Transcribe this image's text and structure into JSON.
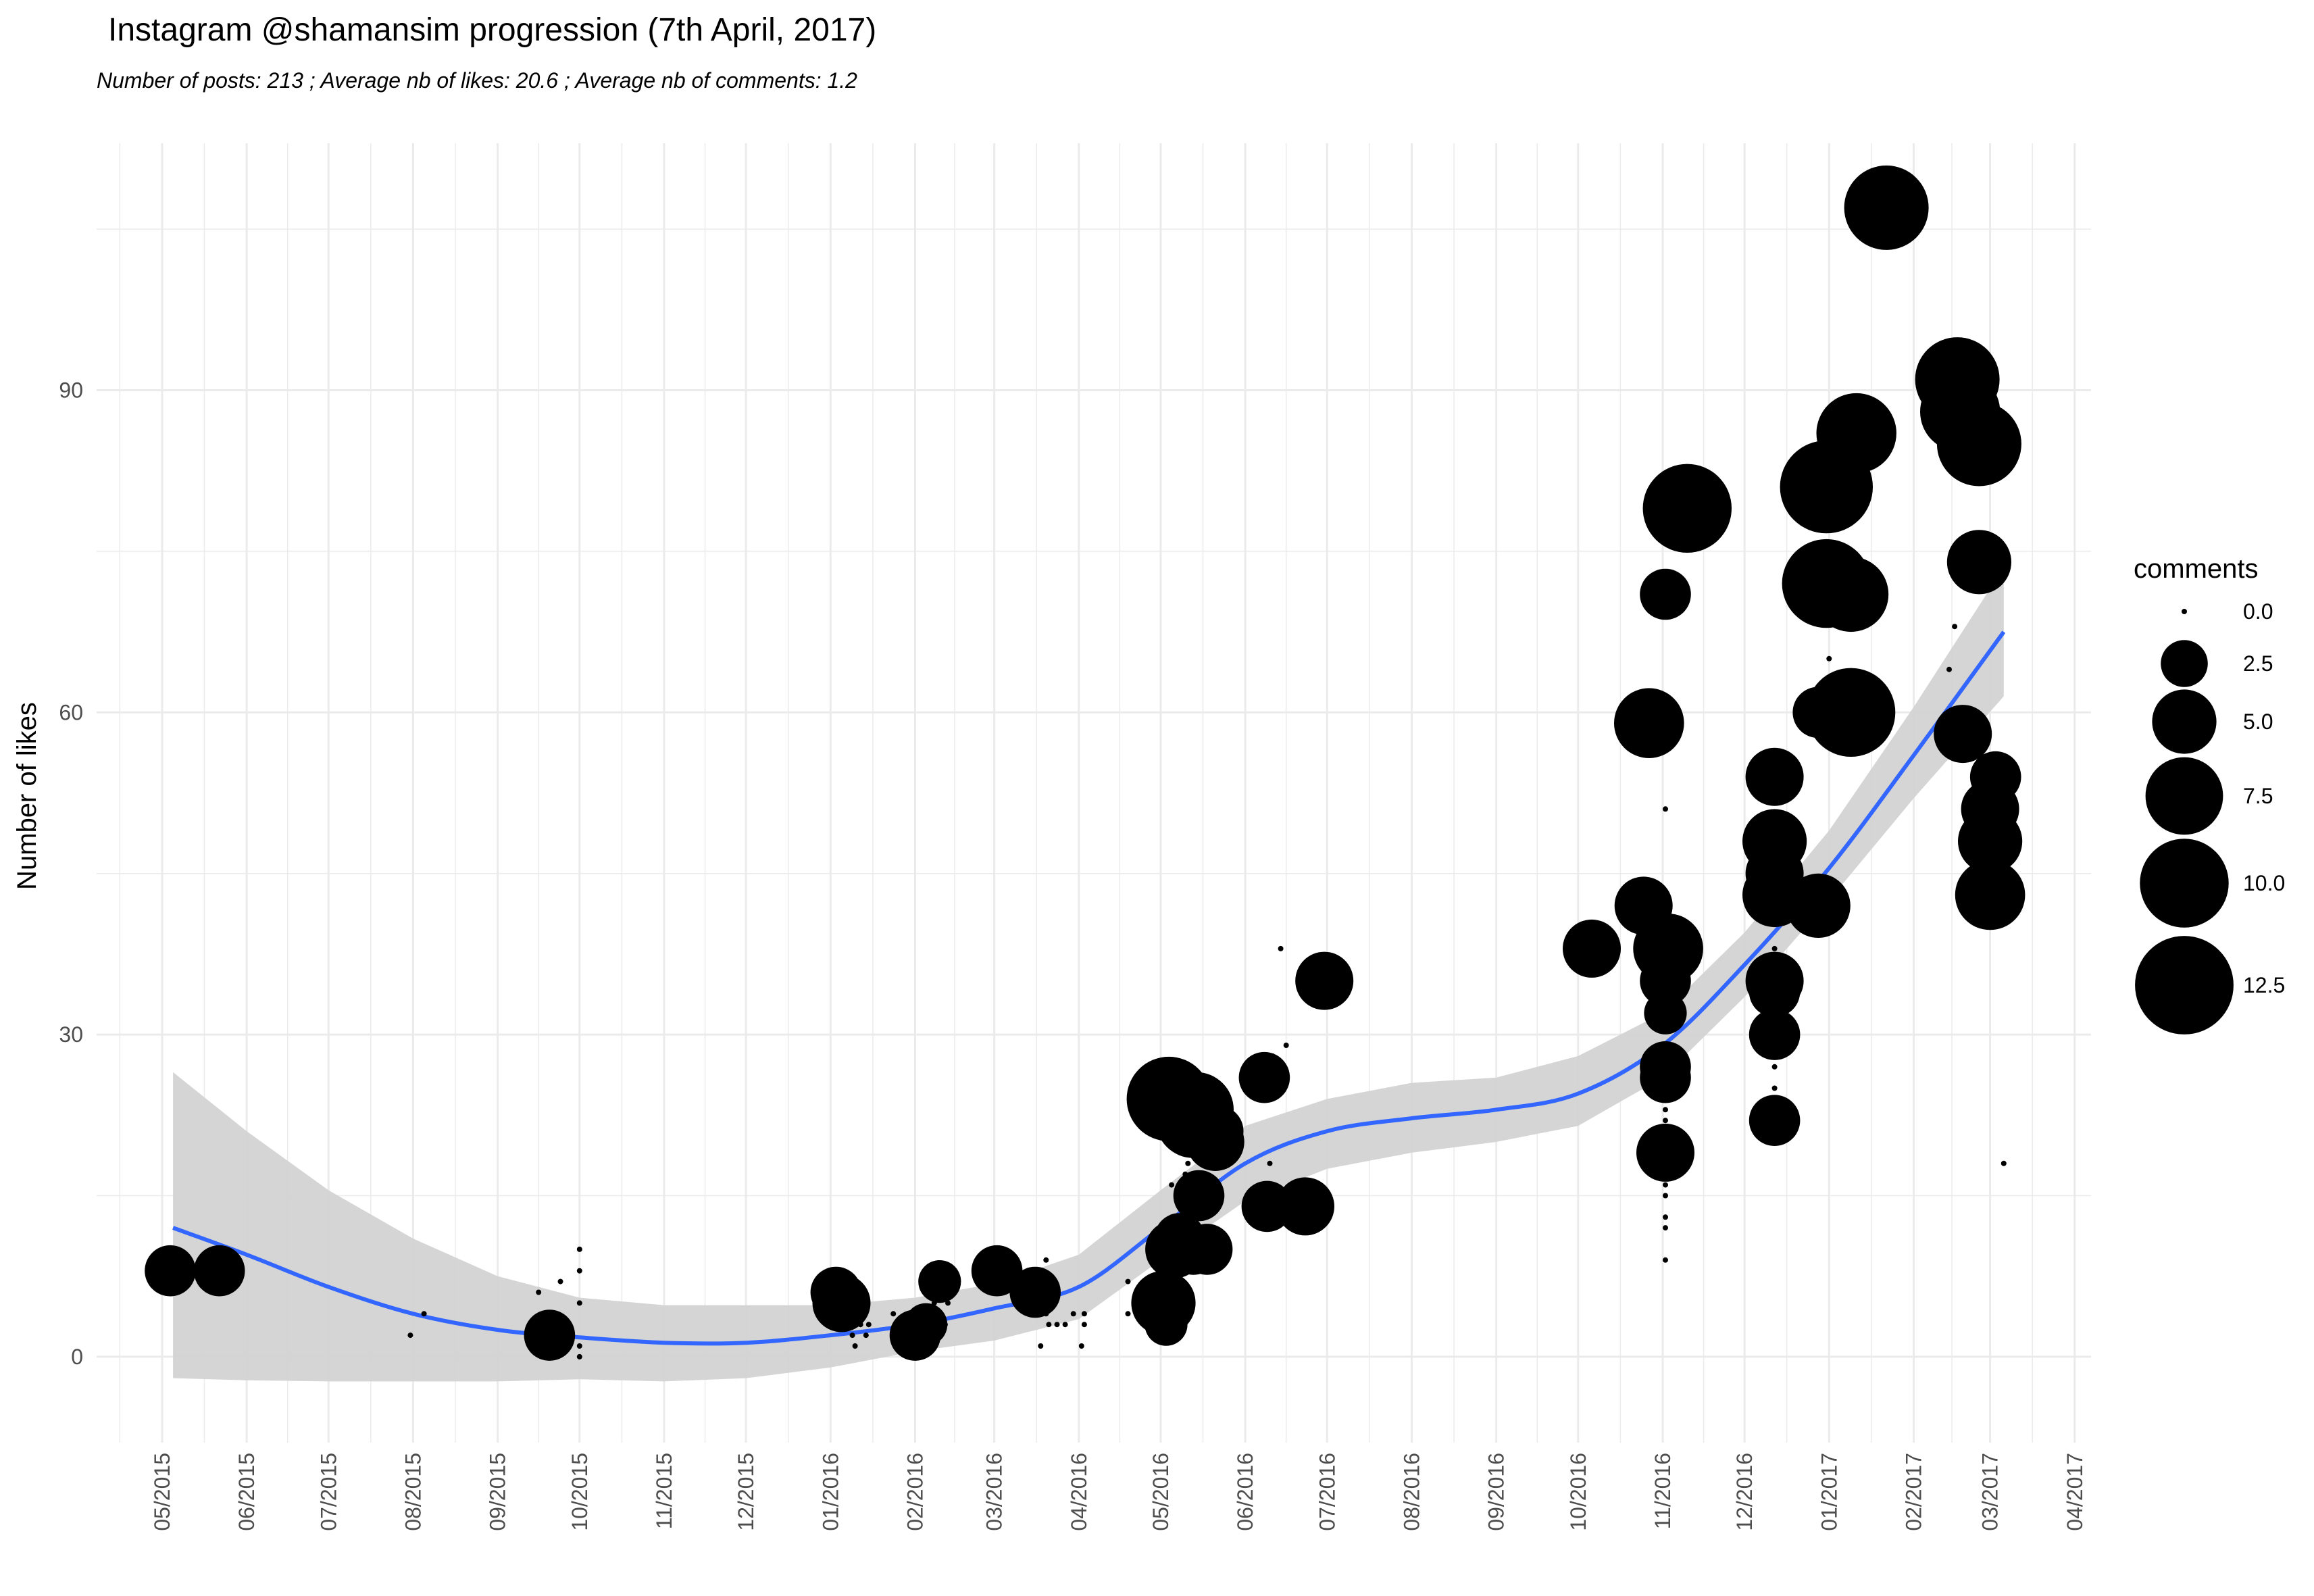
{
  "chart_data": {
    "type": "scatter",
    "title": "Instagram @shamansim progression (7th April, 2017)",
    "subtitle": "Number of posts: 213 ; Average nb of likes: 20.6 ; Average nb of comments: 1.2",
    "xlabel": "",
    "ylabel": "Number of likes",
    "xlim": [
      "2015-04-07",
      "2017-04-07"
    ],
    "ylim": [
      -8,
      113
    ],
    "y_ticks": [
      0,
      30,
      60,
      90
    ],
    "x_tick_labels": [
      "05/2015",
      "06/2015",
      "07/2015",
      "08/2015",
      "09/2015",
      "10/2015",
      "11/2015",
      "12/2015",
      "01/2016",
      "02/2016",
      "03/2016",
      "04/2016",
      "05/2016",
      "06/2016",
      "07/2016",
      "08/2016",
      "09/2016",
      "10/2016",
      "11/2016",
      "12/2016",
      "01/2017",
      "02/2017",
      "03/2017",
      "04/2017"
    ],
    "x_tick_dates": [
      "2015-05-01",
      "2015-06-01",
      "2015-07-01",
      "2015-08-01",
      "2015-09-01",
      "2015-10-01",
      "2015-11-01",
      "2015-12-01",
      "2016-01-01",
      "2016-02-01",
      "2016-03-01",
      "2016-04-01",
      "2016-05-01",
      "2016-06-01",
      "2016-07-01",
      "2016-08-01",
      "2016-09-01",
      "2016-10-01",
      "2016-11-01",
      "2016-12-01",
      "2017-01-01",
      "2017-02-01",
      "2017-03-01",
      "2017-04-01"
    ],
    "grid": true,
    "legend": {
      "title": "comments",
      "position": "right",
      "entries": [
        {
          "label": "0.0",
          "value": 0
        },
        {
          "label": "2.5",
          "value": 2.5
        },
        {
          "label": "5.0",
          "value": 5
        },
        {
          "label": "7.5",
          "value": 7.5
        },
        {
          "label": "10.0",
          "value": 10
        },
        {
          "label": "12.5",
          "value": 12.5
        }
      ]
    },
    "colors": {
      "points": "#000000",
      "smooth_line": "#3366FF",
      "confidence_band": "#d3d3d3",
      "grid": "#ebebeb"
    },
    "points": [
      {
        "date": "2015-05-04",
        "likes": 8,
        "comments": 3
      },
      {
        "date": "2015-05-22",
        "likes": 8,
        "comments": 3
      },
      {
        "date": "2015-07-31",
        "likes": 2,
        "comments": 0
      },
      {
        "date": "2015-08-05",
        "likes": 4,
        "comments": 0
      },
      {
        "date": "2015-09-16",
        "likes": 6,
        "comments": 0
      },
      {
        "date": "2015-09-20",
        "likes": 2,
        "comments": 3
      },
      {
        "date": "2015-09-24",
        "likes": 7,
        "comments": 0
      },
      {
        "date": "2015-10-01",
        "likes": 10,
        "comments": 0
      },
      {
        "date": "2015-10-01",
        "likes": 8,
        "comments": 0
      },
      {
        "date": "2015-10-01",
        "likes": 5,
        "comments": 0
      },
      {
        "date": "2015-10-01",
        "likes": 1,
        "comments": 0
      },
      {
        "date": "2015-10-01",
        "likes": 0,
        "comments": 0
      },
      {
        "date": "2016-01-03",
        "likes": 6,
        "comments": 3
      },
      {
        "date": "2016-01-05",
        "likes": 5,
        "comments": 4
      },
      {
        "date": "2016-01-08",
        "likes": 7,
        "comments": 0
      },
      {
        "date": "2016-01-09",
        "likes": 2,
        "comments": 0
      },
      {
        "date": "2016-01-10",
        "likes": 1,
        "comments": 0
      },
      {
        "date": "2016-01-12",
        "likes": 3,
        "comments": 0
      },
      {
        "date": "2016-01-14",
        "likes": 2,
        "comments": 0
      },
      {
        "date": "2016-01-15",
        "likes": 3,
        "comments": 0
      },
      {
        "date": "2016-01-24",
        "likes": 4,
        "comments": 0
      },
      {
        "date": "2016-01-25",
        "likes": 3,
        "comments": 0
      },
      {
        "date": "2016-02-01",
        "likes": 2,
        "comments": 3
      },
      {
        "date": "2016-02-03",
        "likes": 2,
        "comments": 0
      },
      {
        "date": "2016-02-05",
        "likes": 3,
        "comments": 2
      },
      {
        "date": "2016-02-06",
        "likes": 8,
        "comments": 0
      },
      {
        "date": "2016-02-08",
        "likes": 5,
        "comments": 0
      },
      {
        "date": "2016-02-09",
        "likes": 2,
        "comments": 0
      },
      {
        "date": "2016-02-10",
        "likes": 7,
        "comments": 2
      },
      {
        "date": "2016-02-12",
        "likes": 3,
        "comments": 0
      },
      {
        "date": "2016-02-13",
        "likes": 5,
        "comments": 0
      },
      {
        "date": "2016-03-02",
        "likes": 8,
        "comments": 3
      },
      {
        "date": "2016-03-10",
        "likes": 6,
        "comments": 0
      },
      {
        "date": "2016-03-14",
        "likes": 7,
        "comments": 0
      },
      {
        "date": "2016-03-16",
        "likes": 6,
        "comments": 3
      },
      {
        "date": "2016-03-18",
        "likes": 1,
        "comments": 0
      },
      {
        "date": "2016-03-20",
        "likes": 9,
        "comments": 0
      },
      {
        "date": "2016-03-20",
        "likes": 4,
        "comments": 0
      },
      {
        "date": "2016-03-21",
        "likes": 3,
        "comments": 0
      },
      {
        "date": "2016-03-24",
        "likes": 3,
        "comments": 0
      },
      {
        "date": "2016-03-27",
        "likes": 3,
        "comments": 0
      },
      {
        "date": "2016-03-30",
        "likes": 4,
        "comments": 0
      },
      {
        "date": "2016-04-02",
        "likes": 1,
        "comments": 0
      },
      {
        "date": "2016-04-03",
        "likes": 4,
        "comments": 0
      },
      {
        "date": "2016-04-03",
        "likes": 3,
        "comments": 0
      },
      {
        "date": "2016-04-19",
        "likes": 7,
        "comments": 0
      },
      {
        "date": "2016-04-19",
        "likes": 4,
        "comments": 0
      },
      {
        "date": "2016-05-02",
        "likes": 5,
        "comments": 5
      },
      {
        "date": "2016-05-03",
        "likes": 3,
        "comments": 2
      },
      {
        "date": "2016-05-04",
        "likes": 24,
        "comments": 9
      },
      {
        "date": "2016-05-05",
        "likes": 16,
        "comments": 0
      },
      {
        "date": "2016-05-05",
        "likes": 13,
        "comments": 0
      },
      {
        "date": "2016-05-06",
        "likes": 10,
        "comments": 4
      },
      {
        "date": "2016-05-06",
        "likes": 8,
        "comments": 0
      },
      {
        "date": "2016-05-08",
        "likes": 11,
        "comments": 3
      },
      {
        "date": "2016-05-10",
        "likes": 17,
        "comments": 0
      },
      {
        "date": "2016-05-11",
        "likes": 18,
        "comments": 0
      },
      {
        "date": "2016-05-13",
        "likes": 22,
        "comments": 7
      },
      {
        "date": "2016-05-13",
        "likes": 10,
        "comments": 3
      },
      {
        "date": "2016-05-14",
        "likes": 23,
        "comments": 7
      },
      {
        "date": "2016-05-15",
        "likes": 15,
        "comments": 3
      },
      {
        "date": "2016-05-15",
        "likes": 8,
        "comments": 0
      },
      {
        "date": "2016-05-18",
        "likes": 10,
        "comments": 3
      },
      {
        "date": "2016-05-19",
        "likes": 19,
        "comments": 0
      },
      {
        "date": "2016-05-21",
        "likes": 20,
        "comments": 4
      },
      {
        "date": "2016-05-22",
        "likes": 21,
        "comments": 3
      },
      {
        "date": "2016-05-23",
        "likes": 18,
        "comments": 0
      },
      {
        "date": "2016-06-08",
        "likes": 26,
        "comments": 3
      },
      {
        "date": "2016-06-09",
        "likes": 14,
        "comments": 3
      },
      {
        "date": "2016-06-10",
        "likes": 18,
        "comments": 0
      },
      {
        "date": "2016-06-11",
        "likes": 28,
        "comments": 0
      },
      {
        "date": "2016-06-14",
        "likes": 38,
        "comments": 0
      },
      {
        "date": "2016-06-14",
        "likes": 25,
        "comments": 0
      },
      {
        "date": "2016-06-16",
        "likes": 29,
        "comments": 0
      },
      {
        "date": "2016-06-23",
        "likes": 14,
        "comments": 4
      },
      {
        "date": "2016-06-30",
        "likes": 35,
        "comments": 4
      },
      {
        "date": "2016-06-30",
        "likes": 33,
        "comments": 0
      },
      {
        "date": "2016-10-06",
        "likes": 38,
        "comments": 4
      },
      {
        "date": "2016-10-25",
        "likes": 42,
        "comments": 4
      },
      {
        "date": "2016-10-27",
        "likes": 59,
        "comments": 6
      },
      {
        "date": "2016-11-02",
        "likes": 71,
        "comments": 3
      },
      {
        "date": "2016-11-02",
        "likes": 35,
        "comments": 3
      },
      {
        "date": "2016-11-02",
        "likes": 32,
        "comments": 2
      },
      {
        "date": "2016-11-02",
        "likes": 27,
        "comments": 3
      },
      {
        "date": "2016-11-02",
        "likes": 26,
        "comments": 3
      },
      {
        "date": "2016-11-02",
        "likes": 19,
        "comments": 4
      },
      {
        "date": "2016-11-02",
        "likes": 51,
        "comments": 0
      },
      {
        "date": "2016-11-02",
        "likes": 23,
        "comments": 0
      },
      {
        "date": "2016-11-02",
        "likes": 22,
        "comments": 0
      },
      {
        "date": "2016-11-02",
        "likes": 21,
        "comments": 0
      },
      {
        "date": "2016-11-02",
        "likes": 17,
        "comments": 0
      },
      {
        "date": "2016-11-02",
        "likes": 16,
        "comments": 0
      },
      {
        "date": "2016-11-02",
        "likes": 15,
        "comments": 0
      },
      {
        "date": "2016-11-02",
        "likes": 13,
        "comments": 0
      },
      {
        "date": "2016-11-02",
        "likes": 12,
        "comments": 0
      },
      {
        "date": "2016-11-02",
        "likes": 9,
        "comments": 0
      },
      {
        "date": "2016-11-03",
        "likes": 38,
        "comments": 6
      },
      {
        "date": "2016-11-10",
        "likes": 79,
        "comments": 10
      },
      {
        "date": "2016-12-12",
        "likes": 54,
        "comments": 4
      },
      {
        "date": "2016-12-12",
        "likes": 48,
        "comments": 5
      },
      {
        "date": "2016-12-12",
        "likes": 45,
        "comments": 4
      },
      {
        "date": "2016-12-12",
        "likes": 43,
        "comments": 5
      },
      {
        "date": "2016-12-12",
        "likes": 35,
        "comments": 4
      },
      {
        "date": "2016-12-12",
        "likes": 34,
        "comments": 3
      },
      {
        "date": "2016-12-12",
        "likes": 30,
        "comments": 3
      },
      {
        "date": "2016-12-12",
        "likes": 22,
        "comments": 3
      },
      {
        "date": "2016-12-12",
        "likes": 38,
        "comments": 0
      },
      {
        "date": "2016-12-12",
        "likes": 27,
        "comments": 0
      },
      {
        "date": "2016-12-12",
        "likes": 25,
        "comments": 0
      },
      {
        "date": "2016-12-28",
        "likes": 42,
        "comments": 5
      },
      {
        "date": "2016-12-28",
        "likes": 60,
        "comments": 3
      },
      {
        "date": "2016-12-31",
        "likes": 81,
        "comments": 11
      },
      {
        "date": "2016-12-31",
        "likes": 72,
        "comments": 10
      },
      {
        "date": "2017-01-01",
        "likes": 65,
        "comments": 0
      },
      {
        "date": "2017-01-09",
        "likes": 71,
        "comments": 7
      },
      {
        "date": "2017-01-09",
        "likes": 60,
        "comments": 10
      },
      {
        "date": "2017-01-11",
        "likes": 86,
        "comments": 8
      },
      {
        "date": "2017-01-22",
        "likes": 107,
        "comments": 9
      },
      {
        "date": "2017-02-14",
        "likes": 64,
        "comments": 0
      },
      {
        "date": "2017-02-16",
        "likes": 68,
        "comments": 0
      },
      {
        "date": "2017-02-17",
        "likes": 91,
        "comments": 9
      },
      {
        "date": "2017-02-18",
        "likes": 88,
        "comments": 8
      },
      {
        "date": "2017-02-19",
        "likes": 58,
        "comments": 4
      },
      {
        "date": "2017-02-25",
        "likes": 85,
        "comments": 9
      },
      {
        "date": "2017-02-25",
        "likes": 74,
        "comments": 5
      },
      {
        "date": "2017-03-01",
        "likes": 51,
        "comments": 4
      },
      {
        "date": "2017-03-01",
        "likes": 48,
        "comments": 5
      },
      {
        "date": "2017-03-01",
        "likes": 43,
        "comments": 6
      },
      {
        "date": "2017-03-03",
        "likes": 54,
        "comments": 3
      },
      {
        "date": "2017-03-06",
        "likes": 18,
        "comments": 0
      }
    ],
    "smooth": [
      {
        "date": "2015-05-05",
        "fit": 12.0,
        "lo": -2.0,
        "hi": 26.5
      },
      {
        "date": "2015-06-01",
        "fit": 9.5,
        "lo": -2.2,
        "hi": 21.0
      },
      {
        "date": "2015-07-01",
        "fit": 6.5,
        "lo": -2.3,
        "hi": 15.5
      },
      {
        "date": "2015-08-01",
        "fit": 4.0,
        "lo": -2.3,
        "hi": 11.0
      },
      {
        "date": "2015-09-01",
        "fit": 2.5,
        "lo": -2.3,
        "hi": 7.5
      },
      {
        "date": "2015-10-01",
        "fit": 1.8,
        "lo": -2.1,
        "hi": 5.5
      },
      {
        "date": "2015-11-01",
        "fit": 1.3,
        "lo": -2.3,
        "hi": 4.8
      },
      {
        "date": "2015-12-01",
        "fit": 1.3,
        "lo": -2.0,
        "hi": 4.8
      },
      {
        "date": "2016-01-01",
        "fit": 2.0,
        "lo": -1.0,
        "hi": 4.8
      },
      {
        "date": "2016-02-01",
        "fit": 3.0,
        "lo": 0.5,
        "hi": 5.5
      },
      {
        "date": "2016-03-01",
        "fit": 4.5,
        "lo": 1.5,
        "hi": 6.8
      },
      {
        "date": "2016-04-01",
        "fit": 6.5,
        "lo": 3.5,
        "hi": 9.5
      },
      {
        "date": "2016-05-01",
        "fit": 12.0,
        "lo": 9.0,
        "hi": 15.5
      },
      {
        "date": "2016-06-01",
        "fit": 18.0,
        "lo": 14.5,
        "hi": 21.5
      },
      {
        "date": "2016-07-01",
        "fit": 21.0,
        "lo": 17.5,
        "hi": 24.0
      },
      {
        "date": "2016-08-01",
        "fit": 22.2,
        "lo": 19.0,
        "hi": 25.5
      },
      {
        "date": "2016-09-01",
        "fit": 23.0,
        "lo": 20.0,
        "hi": 26.0
      },
      {
        "date": "2016-10-01",
        "fit": 24.5,
        "lo": 21.5,
        "hi": 28.0
      },
      {
        "date": "2016-11-01",
        "fit": 29.0,
        "lo": 26.0,
        "hi": 32.0
      },
      {
        "date": "2016-12-01",
        "fit": 36.5,
        "lo": 33.5,
        "hi": 39.5
      },
      {
        "date": "2017-01-01",
        "fit": 45.5,
        "lo": 42.5,
        "hi": 49.0
      },
      {
        "date": "2017-02-01",
        "fit": 56.0,
        "lo": 52.0,
        "hi": 60.5
      },
      {
        "date": "2017-03-06",
        "fit": 67.5,
        "lo": 61.5,
        "hi": 73.5
      }
    ]
  }
}
